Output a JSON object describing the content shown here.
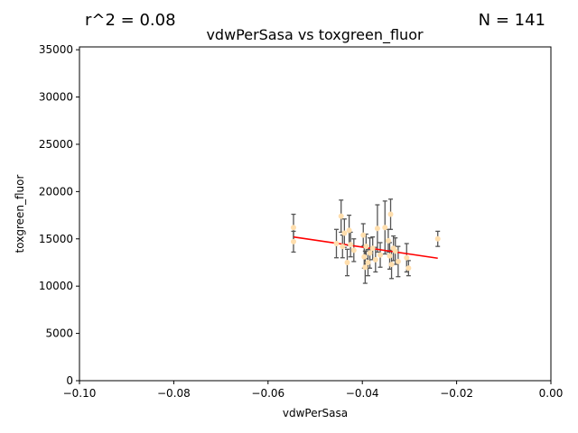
{
  "annotations": {
    "r_squared": "r^2 = 0.08",
    "n_count": "N = 141"
  },
  "chart_data": {
    "type": "scatter",
    "title": "vdwPerSasa vs toxgreen_fluor",
    "xlabel": "vdwPerSasa",
    "ylabel": "toxgreen_fluor",
    "xlim": [
      -0.1,
      0.0
    ],
    "ylim": [
      0,
      35300
    ],
    "x_ticks": [
      -0.1,
      -0.08,
      -0.06,
      -0.04,
      -0.02,
      0.0
    ],
    "x_tick_labels": [
      "−0.10",
      "−0.08",
      "−0.06",
      "−0.04",
      "−0.02",
      "0.00"
    ],
    "y_ticks": [
      0,
      5000,
      10000,
      15000,
      20000,
      25000,
      30000,
      35000
    ],
    "y_tick_labels": [
      "0",
      "5000",
      "10000",
      "15000",
      "20000",
      "25000",
      "30000",
      "35000"
    ],
    "grid": false,
    "legend": "none",
    "marker_color": "#ffdead",
    "errorbar_color": "#555555",
    "fit_color": "#ff0000",
    "points": [
      {
        "x": -0.0546,
        "y": 16200,
        "err": 1400
      },
      {
        "x": -0.0546,
        "y": 14700,
        "err": 1100
      },
      {
        "x": -0.0455,
        "y": 14500,
        "err": 1500
      },
      {
        "x": -0.0445,
        "y": 17400,
        "err": 1700
      },
      {
        "x": -0.0442,
        "y": 14200,
        "err": 1200
      },
      {
        "x": -0.0438,
        "y": 15600,
        "err": 1500
      },
      {
        "x": -0.0432,
        "y": 12500,
        "err": 1400
      },
      {
        "x": -0.0428,
        "y": 15900,
        "err": 1600
      },
      {
        "x": -0.0425,
        "y": 14400,
        "err": 1300
      },
      {
        "x": -0.0418,
        "y": 13800,
        "err": 1200
      },
      {
        "x": -0.0398,
        "y": 15400,
        "err": 1200
      },
      {
        "x": -0.0396,
        "y": 13100,
        "err": 1200
      },
      {
        "x": -0.0394,
        "y": 12000,
        "err": 1700
      },
      {
        "x": -0.0392,
        "y": 14200,
        "err": 1300
      },
      {
        "x": -0.0388,
        "y": 12500,
        "err": 1400
      },
      {
        "x": -0.0384,
        "y": 13500,
        "err": 1600
      },
      {
        "x": -0.0378,
        "y": 14000,
        "err": 1200
      },
      {
        "x": -0.0372,
        "y": 12800,
        "err": 1300
      },
      {
        "x": -0.0368,
        "y": 16100,
        "err": 2500
      },
      {
        "x": -0.0362,
        "y": 13300,
        "err": 1300
      },
      {
        "x": -0.0352,
        "y": 16200,
        "err": 2800
      },
      {
        "x": -0.0345,
        "y": 14800,
        "err": 1200
      },
      {
        "x": -0.0342,
        "y": 13200,
        "err": 1400
      },
      {
        "x": -0.034,
        "y": 17600,
        "err": 1600
      },
      {
        "x": -0.0338,
        "y": 12300,
        "err": 1500
      },
      {
        "x": -0.0334,
        "y": 14000,
        "err": 1300
      },
      {
        "x": -0.033,
        "y": 13700,
        "err": 1400
      },
      {
        "x": -0.0324,
        "y": 12600,
        "err": 1600
      },
      {
        "x": -0.0306,
        "y": 13000,
        "err": 1500
      },
      {
        "x": -0.0302,
        "y": 11900,
        "err": 800
      },
      {
        "x": -0.024,
        "y": 15000,
        "err": 800
      }
    ],
    "fit_line": {
      "x": [
        -0.0546,
        -0.024
      ],
      "y": [
        15200,
        12950
      ]
    }
  }
}
